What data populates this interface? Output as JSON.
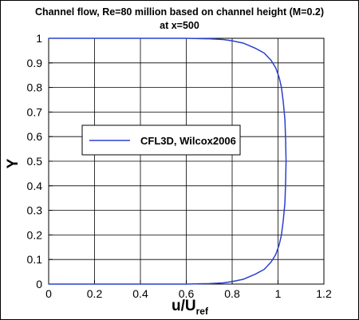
{
  "chart_data": {
    "type": "line",
    "title": "Channel flow, Re=80 million based on channel height (M=0.2)",
    "subtitle": "at x=500",
    "xlabel": "u/U",
    "xlabel_sub": "ref",
    "ylabel": "Y",
    "xlim": [
      0,
      1.2
    ],
    "ylim": [
      0,
      1
    ],
    "xticks": [
      "0",
      "0.2",
      "0.4",
      "0.6",
      "0.8",
      "1",
      "1.2"
    ],
    "yticks": [
      "0",
      "0.1",
      "0.2",
      "0.3",
      "0.4",
      "0.5",
      "0.6",
      "0.7",
      "0.8",
      "0.9",
      "1"
    ],
    "grid": true,
    "legend": "center-left",
    "series": [
      {
        "name": "CFL3D, Wilcox2006",
        "color": "#2a3fd0",
        "x": [
          0,
          0.6,
          0.7,
          0.76,
          0.8,
          0.85,
          0.9,
          0.94,
          0.97,
          0.99,
          1.005,
          1.015,
          1.023,
          1.03,
          1.033,
          1.035,
          1.033,
          1.03,
          1.023,
          1.015,
          1.005,
          0.99,
          0.97,
          0.94,
          0.9,
          0.85,
          0.8,
          0.76,
          0.7,
          0.6,
          0
        ],
        "y": [
          0,
          0.0,
          0.002,
          0.005,
          0.01,
          0.02,
          0.04,
          0.06,
          0.09,
          0.12,
          0.16,
          0.2,
          0.26,
          0.33,
          0.41,
          0.5,
          0.59,
          0.67,
          0.74,
          0.8,
          0.84,
          0.88,
          0.91,
          0.94,
          0.96,
          0.98,
          0.99,
          0.995,
          0.998,
          1.0,
          1.0
        ]
      }
    ]
  }
}
